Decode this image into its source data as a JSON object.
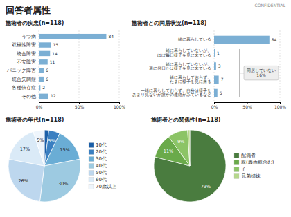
{
  "title": "回答者属性",
  "subtitle": "CONFIDENTIAL",
  "chart_data": [
    {
      "type": "bar",
      "title": "施術者の疾患(n=118)",
      "orientation": "horizontal",
      "categories": [
        "うつ病",
        "双極性障害",
        "統合障害",
        "不安障害",
        "パニック障害",
        "統合失調症",
        "各種依存症",
        "その他"
      ],
      "values": [
        84,
        15,
        14,
        11,
        6,
        6,
        2,
        12
      ],
      "color": "#7bafd4",
      "xlim": [
        0,
        100
      ],
      "xticks": [
        {
          "value": 0,
          "label": "0%"
        },
        {
          "value": 50,
          "label": "50%"
        },
        {
          "value": 100,
          "label": "100%"
        }
      ],
      "grid": true,
      "data_labels": true
    },
    {
      "type": "bar",
      "title": "施術者との同居状況(n=118)",
      "orientation": "horizontal",
      "categories": [
        "一緒に暮らしている",
        "一緒に暮らしていないが、\nほぼ毎日様子を見に来ている",
        "一緒に暮らしていないが、\n週に何日かは様子を見に来ている",
        "一緒に暮らしておらず、\nたまに様子を見に来る",
        "一緒に暮らしておらず、自分は様子を\nあまり見ないが誰かの連絡がみているなど"
      ],
      "values": [
        84,
        1,
        3,
        7,
        5
      ],
      "color": "#7bafd4",
      "xlim": [
        0,
        100
      ],
      "xticks": [
        {
          "value": 0,
          "label": "0%"
        },
        {
          "value": 50,
          "label": "50%"
        },
        {
          "value": 100,
          "label": "100%"
        }
      ],
      "grid": true,
      "data_labels": true,
      "annotations": [
        "同居していない\n16%"
      ]
    },
    {
      "type": "pie",
      "title": "施術者の年代(n=118)",
      "categories": [
        "10代",
        "20代",
        "30代",
        "40代",
        "50代",
        "60代",
        "70歳以上"
      ],
      "values": [
        2,
        5,
        15,
        30,
        26,
        17,
        5
      ],
      "value_labels": [
        null,
        "5%",
        "15%",
        "30%",
        "26%",
        "17%",
        "5%"
      ],
      "colors": [
        "#1b5fa8",
        "#3a7fc1",
        "#6aadd5",
        "#9dcae1",
        "#bdd7ee",
        "#daeaf7",
        "#eef5fc"
      ],
      "legend": "right"
    },
    {
      "type": "pie",
      "title": "施術者との関係性(n=118)",
      "categories": [
        "配偶者",
        "親(義両親含む)",
        "子",
        "兄弟姉妹"
      ],
      "values": [
        79,
        11,
        9,
        1
      ],
      "value_labels": [
        "79%",
        "11%",
        "9%",
        null
      ],
      "colors": [
        "#4a7c3f",
        "#6aaa4a",
        "#8cc466",
        "#b5d88a"
      ],
      "legend": "right"
    }
  ]
}
